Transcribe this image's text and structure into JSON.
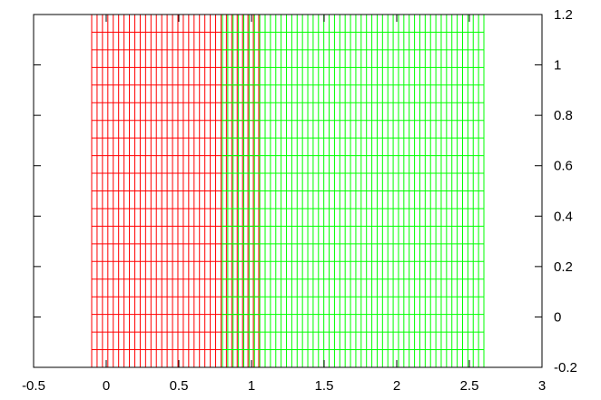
{
  "chart_data": {
    "type": "line",
    "title": "",
    "xlabel": "",
    "ylabel": "",
    "xlim": [
      -0.5,
      3
    ],
    "ylim": [
      -0.2,
      1.2
    ],
    "x_ticks": [
      "-0.5",
      "0",
      "0.5",
      "1",
      "1.5",
      "2",
      "2.5",
      "3"
    ],
    "y_ticks": [
      "-0.2",
      "0",
      "0.2",
      "0.4",
      "0.6",
      "0.8",
      "1",
      "1.2"
    ],
    "y_axis_side": "right",
    "grid": false,
    "legend": "none",
    "series": [
      {
        "color": "#ff0000",
        "x_range": [
          -0.1,
          1.05
        ],
        "vertical_line_count": 32,
        "y_range": [
          -0.2,
          1.2
        ],
        "horizontal_line_count": 21
      },
      {
        "color": "#00ff00",
        "x_range": [
          0.8,
          2.6
        ],
        "vertical_line_count": 50,
        "y_range": [
          -0.2,
          1.2
        ],
        "horizontal_line_count": 21
      }
    ]
  }
}
